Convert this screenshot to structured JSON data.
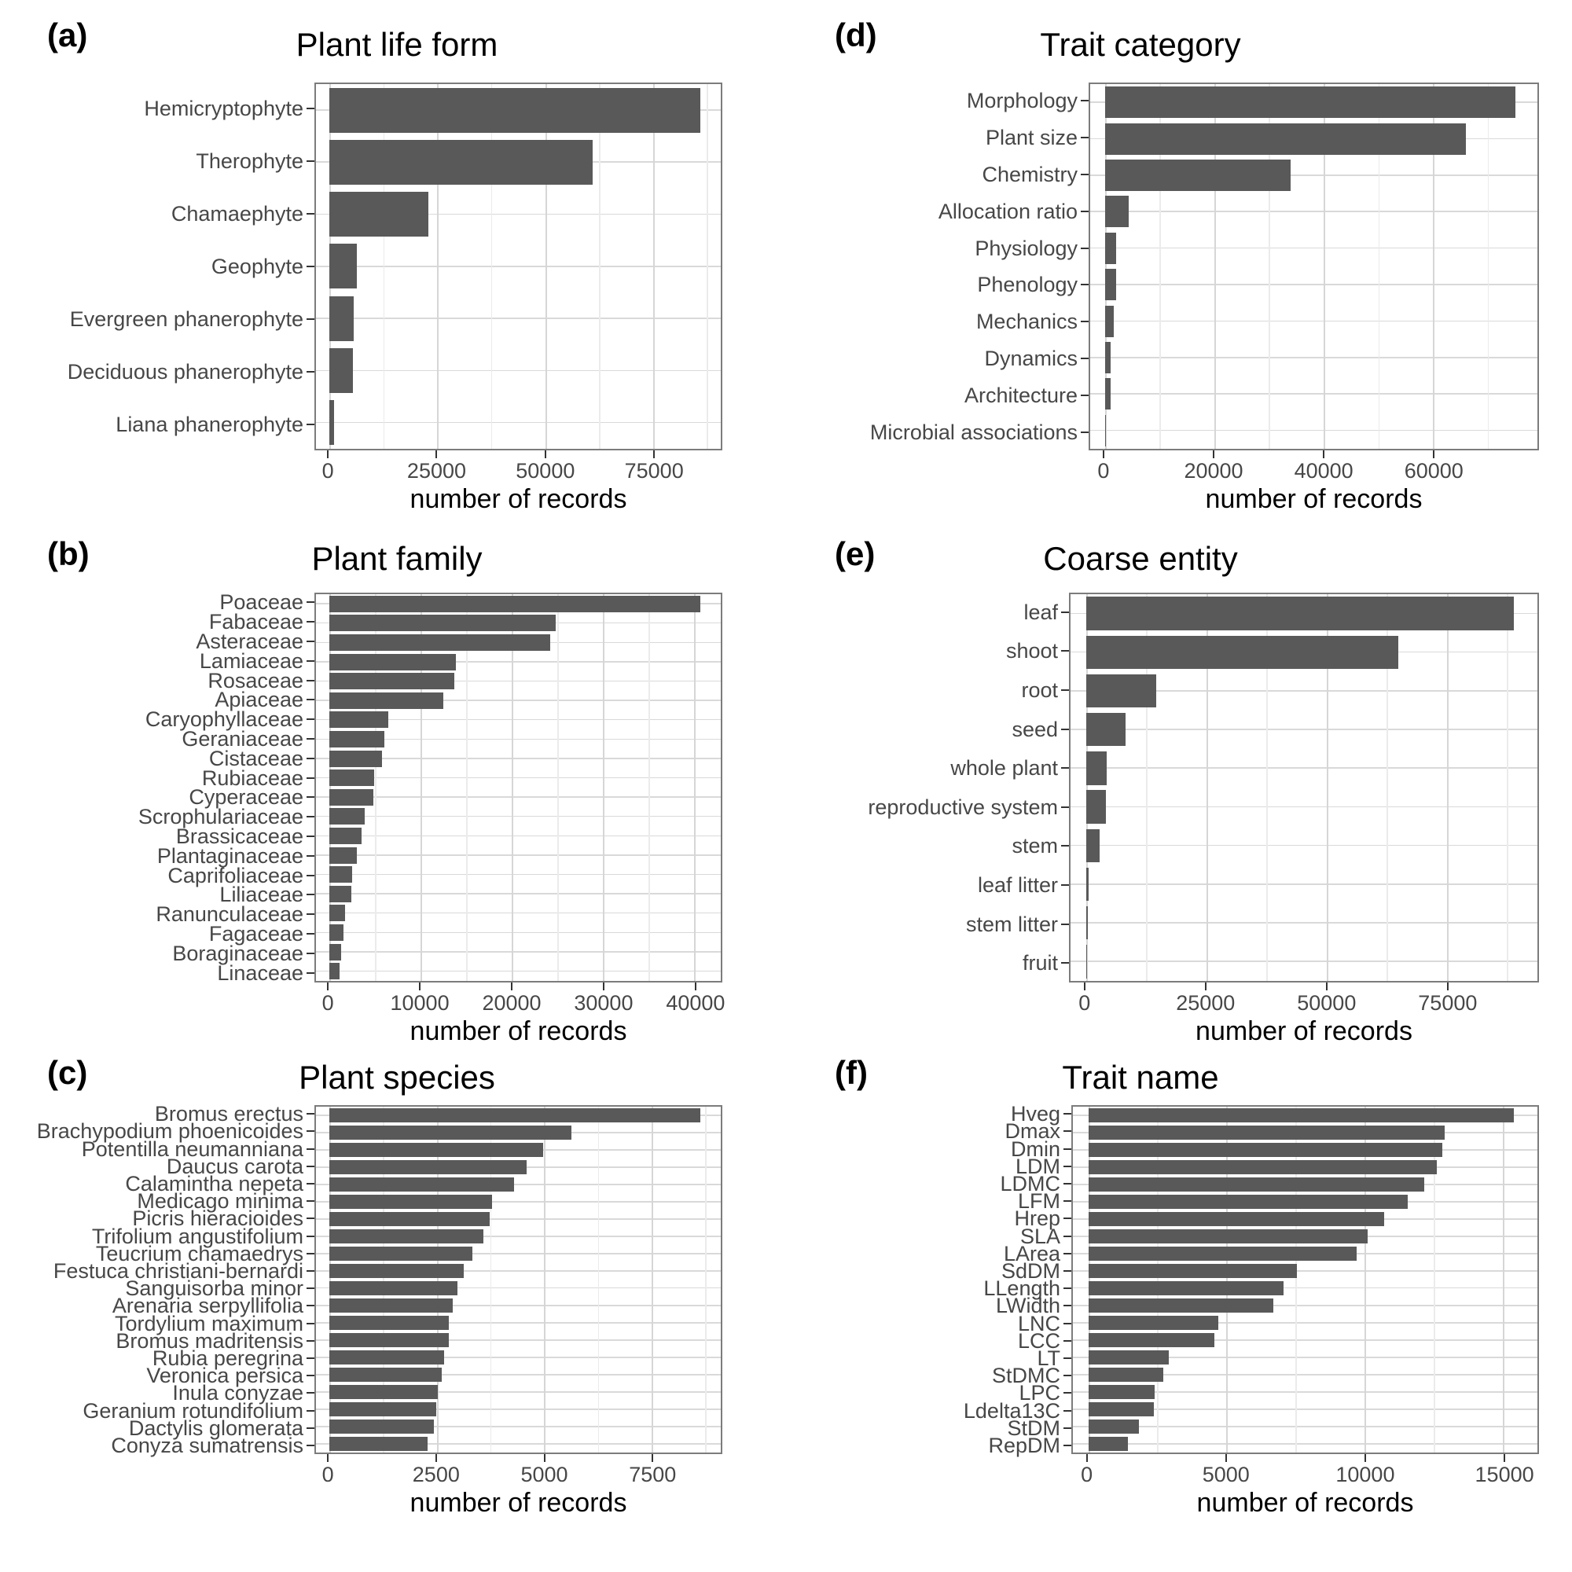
{
  "figure": {
    "background": "#ffffff",
    "bar_color": "#595959",
    "grid_major_color": "#d6d6d6",
    "grid_minor_color": "#ebebeb",
    "panel_border_color": "#7c7c7c",
    "axis_text_color": "#474747",
    "title_color": "#000000"
  },
  "chart_data": [
    {
      "panel_label": "(a)",
      "title": "Plant life form",
      "type": "bar",
      "orientation": "horizontal",
      "xlabel": "number of records",
      "grid": true,
      "legend": null,
      "categories": [
        "Hemicryptophyte",
        "Therophyte",
        "Chamaephyte",
        "Geophyte",
        "Evergreen phanerophyte",
        "Deciduous phanerophyte",
        "Liana phanerophyte"
      ],
      "values": [
        86000,
        61000,
        23000,
        6400,
        5600,
        5500,
        1100
      ],
      "xticks": [
        0,
        25000,
        50000,
        75000
      ],
      "xlim": [
        0,
        90300
      ]
    },
    {
      "panel_label": "(b)",
      "title": "Plant family",
      "type": "bar",
      "orientation": "horizontal",
      "xlabel": "number of records",
      "grid": true,
      "legend": null,
      "categories": [
        "Poaceae",
        "Fabaceae",
        "Asteraceae",
        "Lamiaceae",
        "Rosaceae",
        "Apiaceae",
        "Caryophyllaceae",
        "Geraniaceae",
        "Cistaceae",
        "Rubiaceae",
        "Cyperaceae",
        "Scrophulariaceae",
        "Brassicaceae",
        "Plantaginaceae",
        "Caprifoliaceae",
        "Liliaceae",
        "Ranunculaceae",
        "Fagaceae",
        "Boraginaceae",
        "Linaceae"
      ],
      "values": [
        40700,
        24800,
        24200,
        13900,
        13700,
        12500,
        6450,
        6000,
        5750,
        4900,
        4850,
        3900,
        3500,
        3050,
        2500,
        2400,
        1700,
        1550,
        1300,
        1150
      ],
      "xticks": [
        0,
        10000,
        20000,
        30000,
        40000
      ],
      "xlim": [
        0,
        42700
      ]
    },
    {
      "panel_label": "(c)",
      "title": "Plant species",
      "type": "bar",
      "orientation": "horizontal",
      "xlabel": "number of records",
      "grid": true,
      "legend": null,
      "categories": [
        "Bromus erectus",
        "Brachypodium phoenicoides",
        "Potentilla neumanniana",
        "Daucus carota",
        "Calamintha nepeta",
        "Medicago minima",
        "Picris hieracioides",
        "Trifolium angustifolium",
        "Teucrium chamaedrys",
        "Festuca christiani-bernardi",
        "Sanguisorba minor",
        "Arenaria serpyllifolia",
        "Tordylium maximum",
        "Bromus madritensis",
        "Rubia peregrina",
        "Veronica persica",
        "Inula conyzae",
        "Geranium rotundifolium",
        "Dactylis glomerata",
        "Conyza sumatrensis"
      ],
      "values": [
        8640,
        5640,
        4980,
        4600,
        4300,
        3790,
        3730,
        3590,
        3330,
        3130,
        2990,
        2880,
        2790,
        2780,
        2670,
        2610,
        2520,
        2480,
        2440,
        2280
      ],
      "xticks": [
        0,
        2500,
        5000,
        7500
      ],
      "xlim": [
        0,
        9070
      ]
    },
    {
      "panel_label": "(d)",
      "title": "Trait category",
      "type": "bar",
      "orientation": "horizontal",
      "xlabel": "number of records",
      "grid": true,
      "legend": null,
      "categories": [
        "Morphology",
        "Plant size",
        "Chemistry",
        "Allocation ratio",
        "Physiology",
        "Phenology",
        "Mechanics",
        "Dynamics",
        "Architecture",
        "Microbial associations"
      ],
      "values": [
        75000,
        66000,
        34000,
        4400,
        2100,
        2100,
        1600,
        1100,
        1000,
        150
      ],
      "xticks": [
        0,
        20000,
        40000,
        60000
      ],
      "xlim": [
        0,
        78750
      ]
    },
    {
      "panel_label": "(e)",
      "title": "Coarse entity",
      "type": "bar",
      "orientation": "horizontal",
      "xlabel": "number of records",
      "grid": true,
      "legend": null,
      "categories": [
        "leaf",
        "shoot",
        "root",
        "seed",
        "whole plant",
        "reproductive system",
        "stem",
        "leaf litter",
        "stem litter",
        "fruit"
      ],
      "values": [
        89000,
        65000,
        14600,
        8300,
        4300,
        4100,
        2800,
        500,
        400,
        100
      ],
      "xticks": [
        0,
        25000,
        50000,
        75000
      ],
      "xlim": [
        0,
        93450
      ]
    },
    {
      "panel_label": "(f)",
      "title": "Trait name",
      "type": "bar",
      "orientation": "horizontal",
      "xlabel": "number of records",
      "grid": true,
      "legend": null,
      "categories": [
        "Hveg",
        "Dmax",
        "Dmin",
        "LDM",
        "LDMC",
        "LFM",
        "Hrep",
        "SLA",
        "LArea",
        "SdDM",
        "LLength",
        "LWidth",
        "LNC",
        "LCC",
        "LT",
        "StDMC",
        "LPC",
        "Ldelta13C",
        "StDM",
        "RepDM"
      ],
      "values": [
        15400,
        12900,
        12800,
        12600,
        12150,
        11550,
        10700,
        10100,
        9700,
        7550,
        7050,
        6700,
        4700,
        4550,
        2900,
        2700,
        2400,
        2380,
        1830,
        1440
      ],
      "xticks": [
        0,
        5000,
        10000,
        15000
      ],
      "xlim": [
        0,
        16170
      ]
    }
  ]
}
